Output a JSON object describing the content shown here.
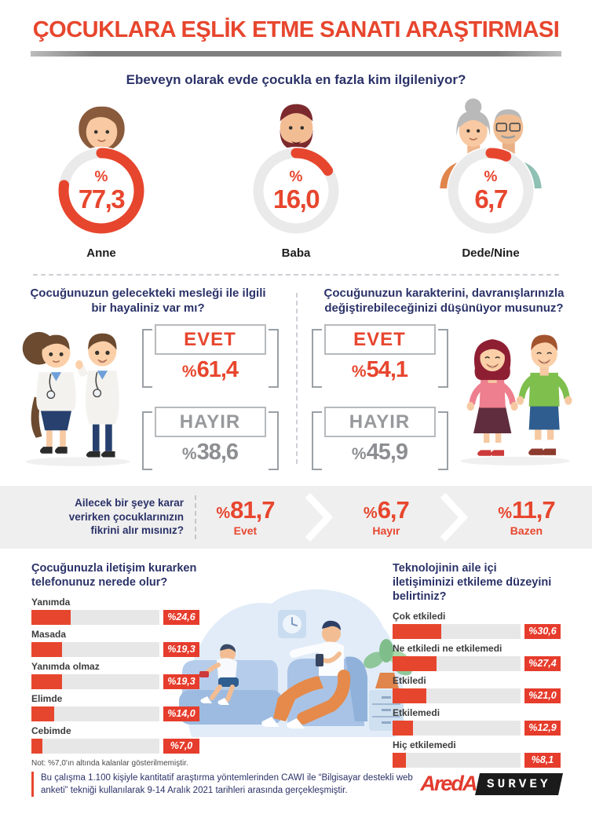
{
  "colors": {
    "accent": "#e7462e",
    "navy": "#2b3268",
    "gray_option": "#97999c",
    "band_bg": "#efefef",
    "bar_track": "#e7e7e7"
  },
  "percent_symbol": "%",
  "header": {
    "title": "ÇOCUKLARA EŞLİK ETME SANATI ARAŞTIRMASI"
  },
  "q1": {
    "question": "Ebeveyn olarak evde çocukla en fazla kim ilgileniyor?",
    "items": [
      {
        "label": "Anne",
        "value_display": "77,3",
        "pct": 77.3
      },
      {
        "label": "Baba",
        "value_display": "16,0",
        "pct": 16.0
      },
      {
        "label": "Dede/Nine",
        "value_display": "6,7",
        "pct": 6.7
      }
    ]
  },
  "q2": {
    "question": "Çocuğunuzun gelecekteki mesleği ile ilgili bir hayaliniz var mı?",
    "options": [
      {
        "label": "EVET",
        "value": "61,4"
      },
      {
        "label": "HAYIR",
        "value": "38,6"
      }
    ]
  },
  "q3": {
    "question": "Çocuğunuzun karakterini, davranışlarınızla değiştirebileceğinizi düşünüyor musunuz?",
    "options": [
      {
        "label": "EVET",
        "value": "54,1"
      },
      {
        "label": "HAYIR",
        "value": "45,9"
      }
    ]
  },
  "band": {
    "question_lines": [
      "Ailecek bir şeye karar",
      "verirken çocuklarınızın",
      "fikrini alır mısınız?"
    ],
    "stats": [
      {
        "value": "81,7",
        "label": "Evet"
      },
      {
        "value": "6,7",
        "label": "Hayır"
      },
      {
        "value": "11,7",
        "label": "Bazen"
      }
    ]
  },
  "chart_left": {
    "title": "Çocuğunuzla iletişim kurarken telefonunuz nerede olur?",
    "rows": [
      {
        "label": "Yanımda",
        "display": "%24,6",
        "value": 24.6
      },
      {
        "label": "Masada",
        "display": "%19,3",
        "value": 19.3
      },
      {
        "label": "Yanımda olmaz",
        "display": "%19,3",
        "value": 19.3
      },
      {
        "label": "Elimde",
        "display": "%14,0",
        "value": 14.0
      },
      {
        "label": "Cebimde",
        "display": "%7,0",
        "value": 7.0
      }
    ],
    "note": "Not: %7,0'ın altında kalanlar gösterilmemiştir."
  },
  "chart_right": {
    "title": "Teknolojinin aile içi iletişiminizi etkileme düzeyini belirtiniz?",
    "rows": [
      {
        "label": "Çok etkiledi",
        "display": "%30,6",
        "value": 30.6
      },
      {
        "label": "Ne etkiledi ne etkilemedi",
        "display": "%27,4",
        "value": 27.4
      },
      {
        "label": "Etkiledi",
        "display": "%21,0",
        "value": 21.0
      },
      {
        "label": "Etkilemedi",
        "display": "%12,9",
        "value": 12.9
      },
      {
        "label": "Hiç etkilemedi",
        "display": "%8,1",
        "value": 8.1
      }
    ]
  },
  "footer": {
    "text": "Bu çalışma 1.100 kişiyle kantitatif araştırma yöntemlerinden CAWI ile “Bilgisayar destekli web anketi” tekniği kullanılarak 9-14 Aralık 2021 tarihleri arasında gerçekleşmiştir.",
    "logo_primary": "AredA",
    "logo_secondary": "SURVEY"
  },
  "chart_data": [
    {
      "type": "pie",
      "title": "Ebeveyn olarak evde çocukla en fazla kim ilgileniyor?",
      "categories": [
        "Anne",
        "Baba",
        "Dede/Nine"
      ],
      "values": [
        77.3,
        16.0,
        6.7
      ],
      "unit": "%"
    },
    {
      "type": "bar",
      "title": "Çocuğunuzun gelecekteki mesleği ile ilgili bir hayaliniz var mı?",
      "categories": [
        "Evet",
        "Hayır"
      ],
      "values": [
        61.4,
        38.6
      ],
      "unit": "%"
    },
    {
      "type": "bar",
      "title": "Çocuğunuzun karakterini, davranışlarınızla değiştirebileceğinizi düşünüyor musunuz?",
      "categories": [
        "Evet",
        "Hayır"
      ],
      "values": [
        54.1,
        45.9
      ],
      "unit": "%"
    },
    {
      "type": "bar",
      "title": "Ailecek bir şeye karar verirken çocuklarınızın fikrini alır mısınız?",
      "categories": [
        "Evet",
        "Hayır",
        "Bazen"
      ],
      "values": [
        81.7,
        6.7,
        11.7
      ],
      "unit": "%"
    },
    {
      "type": "bar",
      "title": "Çocuğunuzla iletişim kurarken telefonunuz nerede olur?",
      "categories": [
        "Yanımda",
        "Masada",
        "Yanımda olmaz",
        "Elimde",
        "Cebimde"
      ],
      "values": [
        24.6,
        19.3,
        19.3,
        14.0,
        7.0
      ],
      "unit": "%",
      "note": "Not: %7,0'ın altında kalanlar gösterilmemiştir."
    },
    {
      "type": "bar",
      "title": "Teknolojinin aile içi iletişiminizi etkileme düzeyini belirtiniz?",
      "categories": [
        "Çok etkiledi",
        "Ne etkiledi ne etkilemedi",
        "Etkiledi",
        "Etkilemedi",
        "Hiç etkilemedi"
      ],
      "values": [
        30.6,
        27.4,
        21.0,
        12.9,
        8.1
      ],
      "unit": "%"
    }
  ]
}
